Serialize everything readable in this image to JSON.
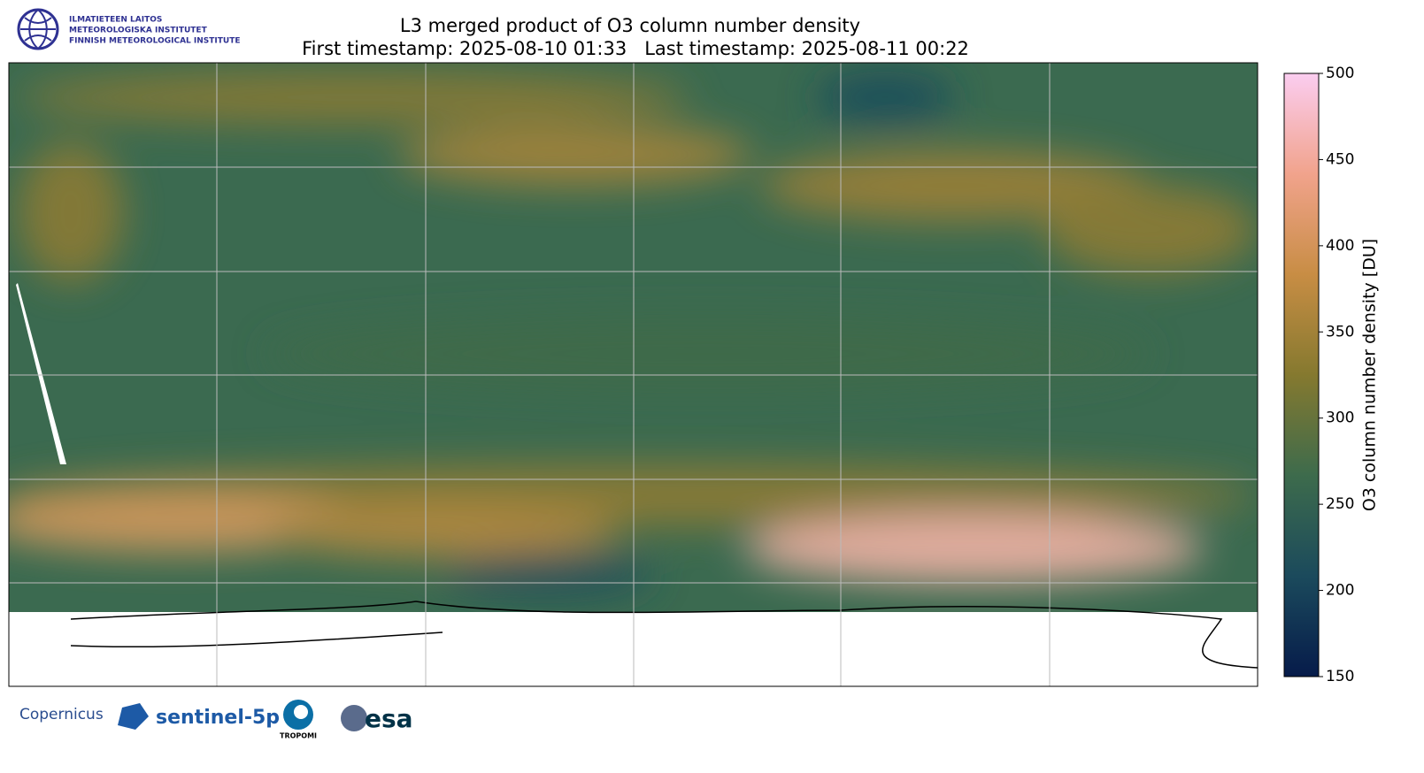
{
  "header": {
    "title": "L3 merged product of O3 column number density",
    "subtitle": "First timestamp: 2025-08-10 01:33   Last timestamp: 2025-08-11 00:22"
  },
  "logo_lines": [
    "ILMATIETEEN LAITOS",
    "METEOROLOGISKA INSTITUTET",
    "FINNISH METEOROLOGICAL INSTITUTE"
  ],
  "colorbar": {
    "label": "O3 column number density [DU]",
    "lim": [
      150,
      500
    ],
    "ticks": [
      150,
      200,
      250,
      300,
      350,
      400,
      450,
      500
    ],
    "colors": [
      "#061b4a",
      "#1b4a5c",
      "#3d6b4c",
      "#85792f",
      "#c88d44",
      "#f1a38c",
      "#fbcdf0"
    ]
  },
  "footer_logos": [
    "Copernicus",
    "sentinel-5p",
    "TROPOMI",
    "esa"
  ]
}
